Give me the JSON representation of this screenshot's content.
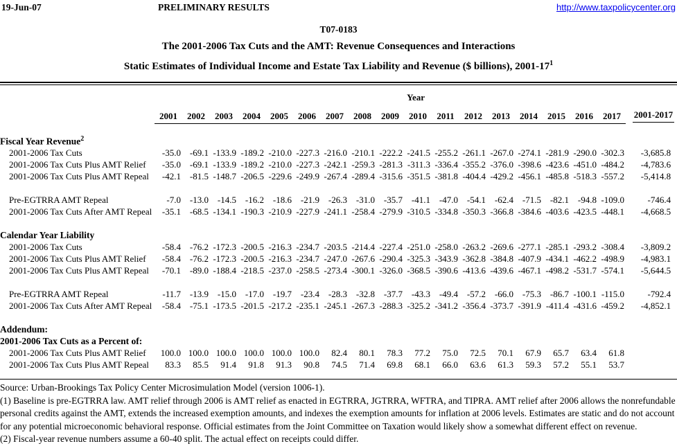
{
  "header": {
    "date": "19-Jun-07",
    "status": "PRELIMINARY RESULTS",
    "link": "http://www.taxpolicycenter.org",
    "link_color": "#0000EE"
  },
  "titles": {
    "doc_number": "T07-0183",
    "line2": "The 2001-2006 Tax Cuts and the AMT: Revenue Consequences and Interactions",
    "line3": "Static Estimates of Individual Income and Estate Tax Liability and Revenue ($ billions), 2001-17",
    "line3_sup": "1"
  },
  "table": {
    "year_group_label": "Year",
    "year_columns": [
      "2001",
      "2002",
      "2003",
      "2004",
      "2005",
      "2006",
      "2007",
      "2008",
      "2009",
      "2010",
      "2011",
      "2012",
      "2013",
      "2014",
      "2015",
      "2016",
      "2017"
    ],
    "total_column_label": "2001-2017",
    "sections": [
      {
        "heading": "Fiscal Year Revenue",
        "heading_sup": "2",
        "row_groups": [
          [
            {
              "label": "2001-2006 Tax Cuts",
              "values": [
                "-35.0",
                "-69.1",
                "-133.9",
                "-189.2",
                "-210.0",
                "-227.3",
                "-216.0",
                "-210.1",
                "-222.2",
                "-241.5",
                "-255.2",
                "-261.1",
                "-267.0",
                "-274.1",
                "-281.9",
                "-290.0",
                "-302.3"
              ],
              "total": "-3,685.8"
            },
            {
              "label": "2001-2006 Tax Cuts Plus AMT Relief",
              "values": [
                "-35.0",
                "-69.1",
                "-133.9",
                "-189.2",
                "-210.0",
                "-227.3",
                "-242.1",
                "-259.3",
                "-281.3",
                "-311.3",
                "-336.4",
                "-355.2",
                "-376.0",
                "-398.6",
                "-423.6",
                "-451.0",
                "-484.2"
              ],
              "total": "-4,783.6"
            },
            {
              "label": "2001-2006 Tax Cuts Plus AMT Repeal",
              "values": [
                "-42.1",
                "-81.5",
                "-148.7",
                "-206.5",
                "-229.6",
                "-249.9",
                "-267.4",
                "-289.4",
                "-315.6",
                "-351.5",
                "-381.8",
                "-404.4",
                "-429.2",
                "-456.1",
                "-485.8",
                "-518.3",
                "-557.2"
              ],
              "total": "-5,414.8"
            }
          ],
          [
            {
              "label": "Pre-EGTRRA AMT Repeal",
              "values": [
                "-7.0",
                "-13.0",
                "-14.5",
                "-16.2",
                "-18.6",
                "-21.9",
                "-26.3",
                "-31.0",
                "-35.7",
                "-41.1",
                "-47.0",
                "-54.1",
                "-62.4",
                "-71.5",
                "-82.1",
                "-94.8",
                "-109.0"
              ],
              "total": "-746.4"
            },
            {
              "label": "2001-2006 Tax Cuts After AMT Repeal",
              "values": [
                "-35.1",
                "-68.5",
                "-134.1",
                "-190.3",
                "-210.9",
                "-227.9",
                "-241.1",
                "-258.4",
                "-279.9",
                "-310.5",
                "-334.8",
                "-350.3",
                "-366.8",
                "-384.6",
                "-403.6",
                "-423.5",
                "-448.1"
              ],
              "total": "-4,668.5"
            }
          ]
        ]
      },
      {
        "heading": "Calendar Year Liability",
        "row_groups": [
          [
            {
              "label": "2001-2006 Tax Cuts",
              "values": [
                "-58.4",
                "-76.2",
                "-172.3",
                "-200.5",
                "-216.3",
                "-234.7",
                "-203.5",
                "-214.4",
                "-227.4",
                "-251.0",
                "-258.0",
                "-263.2",
                "-269.6",
                "-277.1",
                "-285.1",
                "-293.2",
                "-308.4"
              ],
              "total": "-3,809.2"
            },
            {
              "label": "2001-2006 Tax Cuts Plus AMT Relief",
              "values": [
                "-58.4",
                "-76.2",
                "-172.3",
                "-200.5",
                "-216.3",
                "-234.7",
                "-247.0",
                "-267.6",
                "-290.4",
                "-325.3",
                "-343.9",
                "-362.8",
                "-384.8",
                "-407.9",
                "-434.1",
                "-462.2",
                "-498.9"
              ],
              "total": "-4,983.1"
            },
            {
              "label": "2001-2006 Tax Cuts Plus AMT Repeal",
              "values": [
                "-70.1",
                "-89.0",
                "-188.4",
                "-218.5",
                "-237.0",
                "-258.5",
                "-273.4",
                "-300.1",
                "-326.0",
                "-368.5",
                "-390.6",
                "-413.6",
                "-439.6",
                "-467.1",
                "-498.2",
                "-531.7",
                "-574.1"
              ],
              "total": "-5,644.5"
            }
          ],
          [
            {
              "label": "Pre-EGTRRA AMT Repeal",
              "values": [
                "-11.7",
                "-13.9",
                "-15.0",
                "-17.0",
                "-19.7",
                "-23.4",
                "-28.3",
                "-32.8",
                "-37.7",
                "-43.3",
                "-49.4",
                "-57.2",
                "-66.0",
                "-75.3",
                "-86.7",
                "-100.1",
                "-115.0"
              ],
              "total": "-792.4"
            },
            {
              "label": "2001-2006 Tax Cuts After AMT Repeal",
              "values": [
                "-58.4",
                "-75.1",
                "-173.5",
                "-201.5",
                "-217.2",
                "-235.1",
                "-245.1",
                "-267.3",
                "-288.3",
                "-325.2",
                "-341.2",
                "-356.4",
                "-373.7",
                "-391.9",
                "-411.4",
                "-431.6",
                "-459.2"
              ],
              "total": "-4,852.1"
            }
          ]
        ]
      },
      {
        "heading": "Addendum:",
        "subheading": "2001-2006 Tax Cuts as a Percent of:",
        "row_groups": [
          [
            {
              "label": "2001-2006 Tax Cuts Plus AMT Relief",
              "values": [
                "100.0",
                "100.0",
                "100.0",
                "100.0",
                "100.0",
                "100.0",
                "82.4",
                "80.1",
                "78.3",
                "77.2",
                "75.0",
                "72.5",
                "70.1",
                "67.9",
                "65.7",
                "63.4",
                "61.8"
              ],
              "total": ""
            },
            {
              "label": "2001-2006 Tax Cuts Plus AMT Repeal",
              "values": [
                "83.3",
                "85.5",
                "91.4",
                "91.8",
                "91.3",
                "90.8",
                "74.5",
                "71.4",
                "69.8",
                "68.1",
                "66.0",
                "63.6",
                "61.3",
                "59.3",
                "57.2",
                "55.1",
                "53.7"
              ],
              "total": ""
            }
          ]
        ]
      }
    ]
  },
  "footnotes": {
    "source": "Source: Urban-Brookings Tax Policy Center Microsimulation Model (version 1006-1).",
    "note1": "(1) Baseline is pre-EGTRRA law. AMT relief through 2006 is AMT relief as enacted in EGTRRA, JGTRRA, WFTRA, and TIPRA. AMT relief after 2006 allows the nonrefundable personal credits against the AMT, extends the increased exemption amounts, and indexes the exemption amounts for inflation at 2006 levels. Estimates are static and do not account for any potential microeconomic behavioral response. Official estimates from the Joint Committee on Taxation would likely show a somewhat different effect on revenue.",
    "note2": "(2) Fiscal-year revenue numbers assume a 60-40 split. The actual effect on receipts could differ."
  }
}
